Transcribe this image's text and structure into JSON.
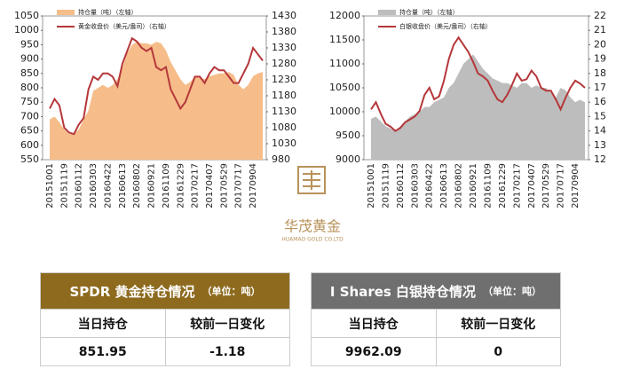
{
  "chart_data": [
    {
      "type": "combo",
      "categories": [
        "20151001",
        null,
        null,
        "20151119",
        null,
        null,
        "20160112",
        null,
        null,
        "20160303",
        null,
        null,
        "20160422",
        null,
        null,
        "20160613",
        null,
        null,
        "20160802",
        null,
        null,
        "20160921",
        null,
        null,
        "20161109",
        null,
        null,
        "20161229",
        null,
        null,
        "20170217",
        null,
        null,
        "20170407",
        null,
        null,
        "20170529",
        null,
        null,
        "20170717",
        null,
        null,
        "20170904",
        null,
        null
      ],
      "series": [
        {
          "name": "持仓量（吨）（左轴）",
          "type": "area",
          "color": "#f6bd8a",
          "axis": "y",
          "values": [
            690,
            700,
            680,
            655,
            640,
            640,
            655,
            690,
            720,
            790,
            800,
            810,
            800,
            810,
            830,
            870,
            920,
            950,
            960,
            955,
            955,
            950,
            960,
            955,
            930,
            890,
            860,
            830,
            810,
            820,
            840,
            835,
            830,
            840,
            845,
            850,
            850,
            855,
            845,
            810,
            795,
            810,
            840,
            850,
            855
          ]
        },
        {
          "name": "黄金收盘价（美元/盎司）（右轴）",
          "type": "line",
          "color": "#b5373a",
          "axis": "y2",
          "values": [
            1140,
            1170,
            1150,
            1080,
            1065,
            1060,
            1090,
            1110,
            1200,
            1240,
            1230,
            1250,
            1250,
            1240,
            1210,
            1280,
            1320,
            1360,
            1350,
            1330,
            1320,
            1330,
            1270,
            1260,
            1270,
            1200,
            1170,
            1140,
            1160,
            1200,
            1240,
            1240,
            1220,
            1250,
            1270,
            1260,
            1260,
            1240,
            1220,
            1220,
            1250,
            1280,
            1330,
            1310,
            1290
          ]
        }
      ],
      "ylim": [
        550,
        1050
      ],
      "yticks": [
        550,
        600,
        650,
        700,
        750,
        800,
        850,
        900,
        950,
        1000,
        1050
      ],
      "y2lim": [
        980,
        1430
      ],
      "y2ticks": [
        980,
        1030,
        1080,
        1130,
        1180,
        1230,
        1280,
        1330,
        1380,
        1430
      ]
    },
    {
      "type": "combo",
      "categories": [
        "20151001",
        null,
        null,
        "20151119",
        null,
        null,
        "20160112",
        null,
        null,
        "20160303",
        null,
        null,
        "20160422",
        null,
        null,
        "20160613",
        null,
        null,
        "20160802",
        null,
        null,
        "20160921",
        null,
        null,
        "20161109",
        null,
        null,
        "20161229",
        null,
        null,
        "20170217",
        null,
        null,
        "20170407",
        null,
        null,
        "20170529",
        null,
        null,
        "20170717",
        null,
        null,
        "20170904",
        null,
        null
      ],
      "series": [
        {
          "name": "持仓量（吨）（左轴）",
          "type": "area",
          "color": "#bdbdbd",
          "axis": "y",
          "values": [
            9850,
            9900,
            9800,
            9700,
            9650,
            9600,
            9700,
            9800,
            9900,
            9950,
            10000,
            10100,
            10100,
            10200,
            10250,
            10300,
            10500,
            10600,
            10800,
            11000,
            11100,
            11200,
            11050,
            10900,
            10800,
            10700,
            10650,
            10600,
            10600,
            10550,
            10500,
            10600,
            10600,
            10500,
            10550,
            10500,
            10500,
            10400,
            10300,
            10500,
            10450,
            10300,
            10200,
            10250,
            10200
          ]
        },
        {
          "name": "白银收盘价（美元/盎司）（右轴）",
          "type": "line",
          "color": "#b5373a",
          "axis": "y2",
          "values": [
            15.5,
            16.0,
            15.2,
            14.5,
            14.3,
            14.0,
            14.2,
            14.6,
            14.8,
            15.0,
            15.4,
            16.5,
            17.0,
            16.2,
            16.4,
            17.5,
            19.0,
            20.0,
            20.5,
            20.0,
            19.5,
            18.8,
            18.0,
            17.8,
            17.5,
            16.8,
            16.2,
            16.0,
            16.5,
            17.2,
            18.0,
            17.5,
            17.6,
            18.2,
            17.8,
            17.0,
            16.8,
            16.8,
            16.2,
            15.5,
            16.3,
            17.0,
            17.5,
            17.3,
            17.0
          ]
        }
      ],
      "ylim": [
        9000,
        12000
      ],
      "yticks": [
        9000,
        9500,
        10000,
        10500,
        11000,
        11500,
        12000
      ],
      "y2lim": [
        12,
        22
      ],
      "y2ticks": [
        12,
        13,
        14,
        15,
        16,
        17,
        18,
        19,
        20,
        21,
        22
      ]
    }
  ],
  "logo": {
    "name": "华茂黄金",
    "subtitle": "HUAMAO GOLD CO.LTD"
  },
  "tables": [
    {
      "title": "SPDR 黄金持仓情况",
      "unit": "（单位：吨）",
      "headers": [
        "当日持仓",
        "较前一日变化"
      ],
      "values": [
        "851.95",
        "-1.18"
      ]
    },
    {
      "title": "I Shares 白银持仓情况",
      "unit": "（单位：吨）",
      "headers": [
        "当日持仓",
        "较前一日变化"
      ],
      "values": [
        "9962.09",
        "0"
      ]
    }
  ]
}
